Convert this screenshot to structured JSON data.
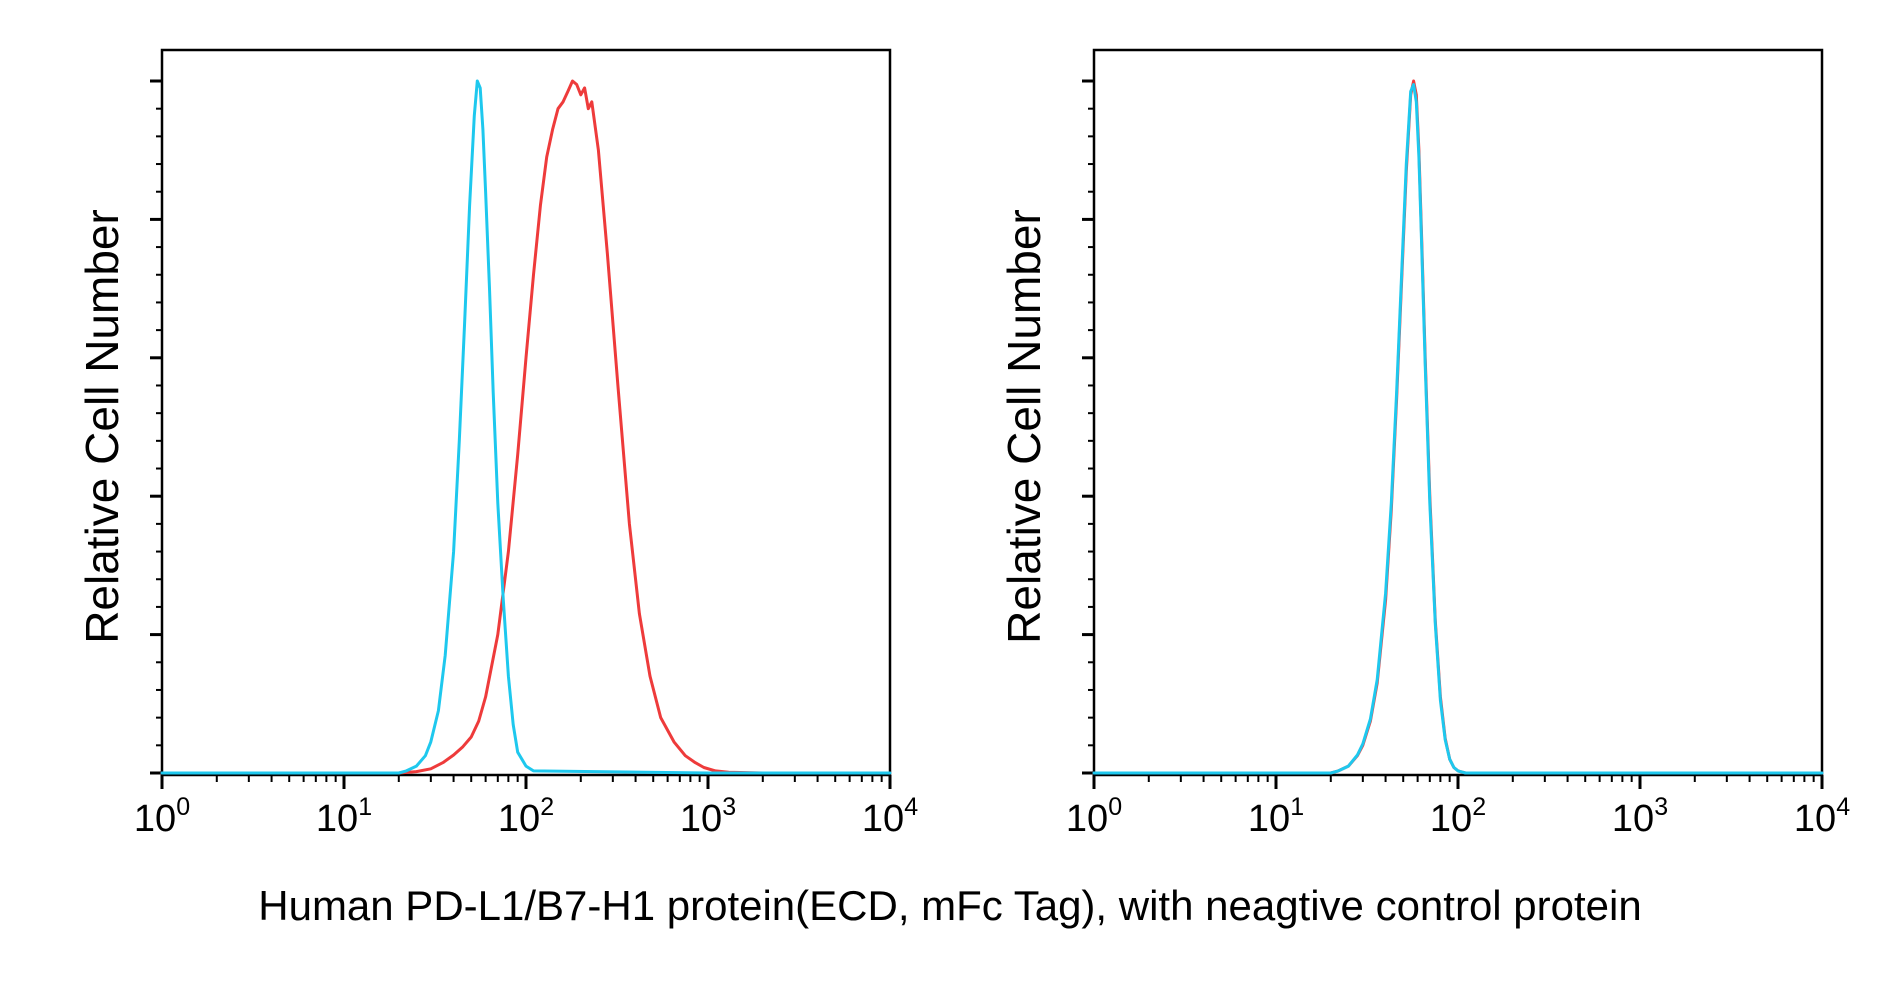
{
  "caption": "Human PD-L1/B7-H1 protein(ECD, mFc Tag), with neagtive control protein",
  "colors": {
    "red": "#ee3b3b",
    "cyan": "#1ec8ee",
    "axis": "#000000"
  },
  "chart_data": [
    {
      "type": "line",
      "title": "",
      "xlabel": "",
      "ylabel": "Relative Cell Number",
      "xscale": "log",
      "xlim": [
        1,
        10000
      ],
      "ylim": [
        0,
        100
      ],
      "x_ticks": [
        {
          "base": "10",
          "exp": "0",
          "value": 1
        },
        {
          "base": "10",
          "exp": "1",
          "value": 10
        },
        {
          "base": "10",
          "exp": "2",
          "value": 100
        },
        {
          "base": "10",
          "exp": "3",
          "value": 1000
        },
        {
          "base": "10",
          "exp": "4",
          "value": 10000
        }
      ],
      "y_major_ticks": [
        0,
        20,
        40,
        60,
        80,
        100
      ],
      "y_tick_labels": false,
      "grid": false,
      "legend": false,
      "series": [
        {
          "color": "#ee3b3b",
          "x": [
            1,
            10,
            20,
            25,
            30,
            35,
            40,
            45,
            50,
            55,
            60,
            70,
            80,
            90,
            100,
            110,
            120,
            130,
            140,
            150,
            160,
            170,
            180,
            190,
            200,
            210,
            220,
            230,
            250,
            280,
            320,
            370,
            420,
            480,
            550,
            650,
            750,
            850,
            950,
            1100,
            1300,
            2000,
            10000
          ],
          "y": [
            0,
            0,
            0,
            0.2,
            0.6,
            1.5,
            2.6,
            3.8,
            5.2,
            7.5,
            11,
            20,
            32,
            46,
            60,
            72,
            82,
            89,
            93,
            96,
            97,
            98.5,
            100,
            99.5,
            98,
            99,
            96,
            97,
            90,
            75,
            56,
            36,
            23,
            14,
            8,
            4.5,
            2.5,
            1.5,
            0.8,
            0.3,
            0.1,
            0,
            0
          ]
        },
        {
          "color": "#1ec8ee",
          "x": [
            1,
            10,
            20,
            22,
            25,
            28,
            30,
            33,
            36,
            40,
            43,
            46,
            49,
            52,
            54,
            56,
            58,
            60,
            63,
            66,
            70,
            75,
            80,
            85,
            90,
            100,
            110,
            1000,
            10000
          ],
          "y": [
            0,
            0,
            0,
            0.3,
            1,
            2.5,
            4.5,
            9,
            17,
            32,
            48,
            65,
            82,
            95,
            100,
            99,
            93,
            84,
            70,
            55,
            39,
            25,
            14,
            7,
            3,
            1,
            0.3,
            0,
            0
          ]
        }
      ]
    },
    {
      "type": "line",
      "title": "",
      "xlabel": "",
      "ylabel": "Relative Cell Number",
      "xscale": "log",
      "xlim": [
        1,
        10000
      ],
      "ylim": [
        0,
        100
      ],
      "x_ticks": [
        {
          "base": "10",
          "exp": "0",
          "value": 1
        },
        {
          "base": "10",
          "exp": "1",
          "value": 10
        },
        {
          "base": "10",
          "exp": "2",
          "value": 100
        },
        {
          "base": "10",
          "exp": "3",
          "value": 1000
        },
        {
          "base": "10",
          "exp": "4",
          "value": 10000
        }
      ],
      "y_major_ticks": [
        0,
        20,
        40,
        60,
        80,
        100
      ],
      "y_tick_labels": false,
      "grid": false,
      "legend": false,
      "series": [
        {
          "color": "#ee3b3b",
          "x": [
            1,
            10,
            20,
            22,
            25,
            28,
            30,
            33,
            36,
            40,
            43,
            46,
            49,
            52,
            55,
            57,
            59,
            61,
            63,
            66,
            70,
            75,
            80,
            85,
            90,
            95,
            100,
            110,
            1000,
            10000
          ],
          "y": [
            0,
            0,
            0,
            0.3,
            1,
            2.5,
            4,
            7.5,
            13,
            25,
            38,
            54,
            71,
            87,
            98,
            100,
            98,
            90,
            78,
            60,
            40,
            22,
            11,
            5,
            2,
            0.8,
            0.3,
            0,
            0,
            0
          ]
        },
        {
          "color": "#1ec8ee",
          "x": [
            1,
            10,
            20,
            22,
            25,
            28,
            30,
            33,
            36,
            40,
            43,
            46,
            49,
            52,
            55,
            57,
            59,
            61,
            63,
            66,
            70,
            75,
            80,
            85,
            90,
            95,
            100,
            110,
            1000,
            10000
          ],
          "y": [
            0,
            0,
            0,
            0.3,
            1,
            2.6,
            4.2,
            7.8,
            13.5,
            26,
            39,
            55,
            72,
            88,
            98.5,
            99.5,
            97,
            89,
            77,
            59,
            39,
            21.5,
            10.5,
            4.8,
            2,
            0.8,
            0.3,
            0,
            0,
            0
          ]
        }
      ]
    }
  ]
}
